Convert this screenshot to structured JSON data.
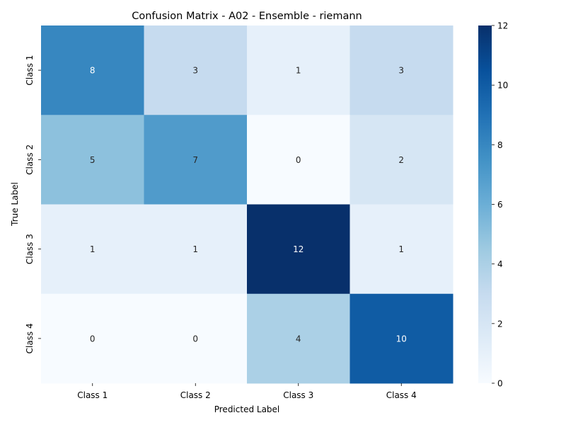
{
  "chart_data": {
    "type": "heatmap",
    "title": "Confusion Matrix - A02 - Ensemble - riemann",
    "xlabel": "Predicted Label",
    "ylabel": "True Label",
    "x_categories": [
      "Class 1",
      "Class 2",
      "Class 3",
      "Class 4"
    ],
    "y_categories": [
      "Class 1",
      "Class 2",
      "Class 3",
      "Class 4"
    ],
    "values": [
      [
        8,
        3,
        1,
        3
      ],
      [
        5,
        7,
        0,
        2
      ],
      [
        1,
        1,
        12,
        1
      ],
      [
        0,
        0,
        4,
        10
      ]
    ],
    "colormap": "Blues",
    "vmin": 0,
    "vmax": 12,
    "colorbar_ticks": [
      "0",
      "2",
      "4",
      "6",
      "8",
      "10",
      "12"
    ],
    "colors": {
      "low": "#f7fbff",
      "high": "#08306b",
      "text_dark": "#262626",
      "text_light": "#ffffff"
    }
  }
}
